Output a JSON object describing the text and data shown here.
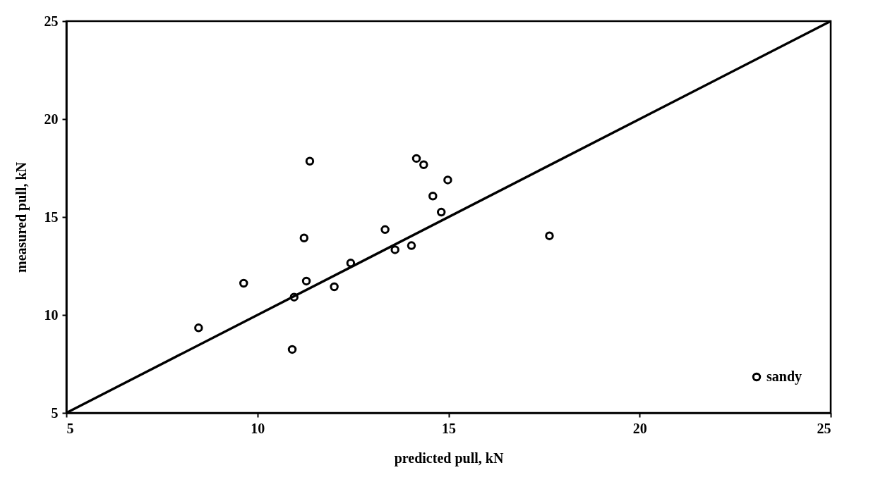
{
  "chart_data": {
    "type": "scatter",
    "xlabel": "predicted pull, kN",
    "ylabel": "measured pull, kN",
    "xlim": [
      5,
      25
    ],
    "ylim": [
      5,
      25
    ],
    "xticks": [
      5,
      10,
      15,
      20,
      25
    ],
    "yticks": [
      5,
      10,
      15,
      20,
      25
    ],
    "grid": false,
    "legend": "bottom right",
    "marker": "circle",
    "series": [
      {
        "name": "sandy",
        "color": "#000000",
        "x": [
          8.46,
          9.64,
          10.96,
          10.91,
          11.22,
          11.37,
          11.28,
          12.01,
          12.44,
          13.34,
          13.6,
          14.03,
          14.16,
          14.35,
          14.59,
          14.81,
          14.98,
          17.64
        ],
        "values": [
          9.34,
          11.62,
          10.91,
          8.24,
          13.93,
          17.85,
          11.73,
          11.44,
          12.65,
          14.36,
          13.33,
          13.54,
          17.99,
          17.67,
          16.07,
          15.25,
          16.89,
          14.04
        ]
      },
      {
        "type": "line",
        "color": "#000000",
        "line_style": "solid",
        "marker": "none",
        "x": [
          5,
          25
        ],
        "values": [
          5,
          25
        ]
      }
    ]
  }
}
